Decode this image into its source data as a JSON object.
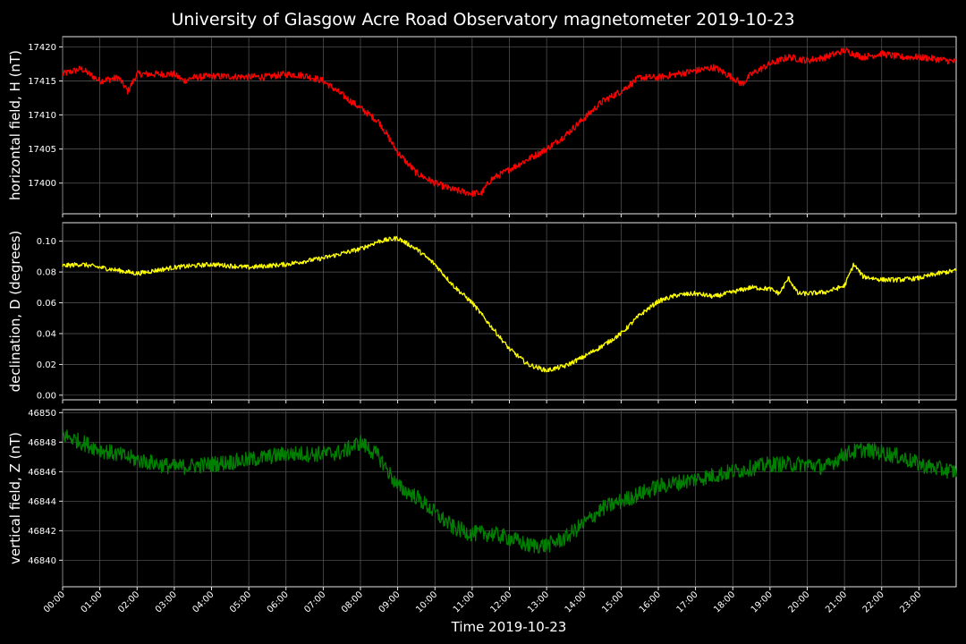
{
  "chart_data": {
    "type": "line",
    "title": "University of Glasgow Acre Road Observatory magnetometer 2019-10-23",
    "xlabel": "Time 2019-10-23",
    "x_ticks": [
      "00:00",
      "01:00",
      "02:00",
      "03:00",
      "04:00",
      "05:00",
      "06:00",
      "07:00",
      "08:00",
      "09:00",
      "10:00",
      "11:00",
      "12:00",
      "13:00",
      "14:00",
      "15:00",
      "16:00",
      "17:00",
      "18:00",
      "19:00",
      "20:00",
      "21:00",
      "22:00",
      "23:00"
    ],
    "xlim": [
      "00:00",
      "24:00"
    ],
    "grid": true,
    "panels": [
      {
        "ylabel": "horizontal field, H (nT)",
        "color": "#ff0000",
        "ylim": [
          17395.5,
          17421.5
        ],
        "yticks": [
          17400,
          17405,
          17410,
          17415,
          17420
        ],
        "noise": 0.5,
        "series": {
          "name": "H",
          "x": [
            "00:00",
            "00:30",
            "01:00",
            "01:30",
            "01:45",
            "02:00",
            "02:30",
            "03:00",
            "03:15",
            "03:30",
            "04:00",
            "05:00",
            "05:30",
            "06:00",
            "06:30",
            "07:00",
            "07:30",
            "08:00",
            "08:30",
            "09:00",
            "09:30",
            "10:00",
            "10:30",
            "11:00",
            "11:15",
            "11:30",
            "12:00",
            "12:30",
            "13:00",
            "13:30",
            "14:00",
            "14:30",
            "15:00",
            "15:30",
            "16:00",
            "16:30",
            "17:00",
            "17:30",
            "18:00",
            "18:15",
            "18:30",
            "19:00",
            "19:30",
            "20:00",
            "20:30",
            "21:00",
            "21:30",
            "22:00",
            "22:30",
            "23:00",
            "23:30",
            "24:00"
          ],
          "y": [
            17416,
            17416.8,
            17415,
            17415.5,
            17413.5,
            17416,
            17416,
            17416,
            17415,
            17415.5,
            17415.7,
            17415.6,
            17415.6,
            17416,
            17415.8,
            17415,
            17413,
            17411,
            17409,
            17404.5,
            17401.5,
            17400,
            17399,
            17398.5,
            17398.5,
            17400.5,
            17402,
            17403.5,
            17405,
            17407,
            17409.5,
            17412,
            17413.5,
            17415.5,
            17415.5,
            17416,
            17416.5,
            17417,
            17415.5,
            17414.5,
            17416,
            17417.5,
            17418.5,
            17418,
            17418.5,
            17419.5,
            17418.5,
            17419,
            17418.5,
            17418.5,
            17418.2,
            17417.8
          ]
        }
      },
      {
        "ylabel": "declination, D (degrees)",
        "color": "#ffff00",
        "ylim": [
          -0.003,
          0.112
        ],
        "yticks": [
          0.0,
          0.02,
          0.04,
          0.06,
          0.08,
          0.1
        ],
        "noise": 0.0015,
        "series": {
          "name": "D",
          "x": [
            "00:00",
            "00:30",
            "01:00",
            "02:00",
            "03:00",
            "04:00",
            "05:00",
            "06:00",
            "07:00",
            "08:00",
            "08:30",
            "09:00",
            "09:30",
            "10:00",
            "10:30",
            "11:00",
            "11:30",
            "12:00",
            "12:30",
            "13:00",
            "13:30",
            "14:00",
            "14:30",
            "15:00",
            "15:30",
            "16:00",
            "16:30",
            "17:00",
            "17:30",
            "18:00",
            "18:30",
            "19:00",
            "19:15",
            "19:30",
            "19:45",
            "20:00",
            "20:30",
            "21:00",
            "21:15",
            "21:30",
            "22:00",
            "22:30",
            "23:00",
            "23:30",
            "24:00"
          ],
          "y": [
            0.084,
            0.085,
            0.083,
            0.079,
            0.083,
            0.085,
            0.083,
            0.085,
            0.089,
            0.095,
            0.1,
            0.102,
            0.095,
            0.085,
            0.071,
            0.06,
            0.045,
            0.03,
            0.02,
            0.016,
            0.019,
            0.025,
            0.032,
            0.04,
            0.052,
            0.061,
            0.065,
            0.066,
            0.064,
            0.067,
            0.07,
            0.069,
            0.066,
            0.076,
            0.066,
            0.066,
            0.067,
            0.071,
            0.085,
            0.077,
            0.075,
            0.075,
            0.076,
            0.079,
            0.081
          ]
        }
      },
      {
        "ylabel": "vertical field, Z (nT)",
        "color": "#008000",
        "ylim": [
          46838.2,
          46850.2
        ],
        "yticks": [
          46840,
          46842,
          46844,
          46846,
          46848,
          46850
        ],
        "noise": 0.55,
        "series": {
          "name": "Z",
          "x": [
            "00:00",
            "00:30",
            "01:00",
            "02:00",
            "03:00",
            "04:00",
            "05:00",
            "06:00",
            "07:00",
            "07:30",
            "08:00",
            "08:30",
            "09:00",
            "09:30",
            "10:00",
            "10:30",
            "11:00",
            "11:30",
            "12:00",
            "12:30",
            "13:00",
            "13:30",
            "14:00",
            "14:30",
            "15:00",
            "16:00",
            "17:00",
            "18:00",
            "19:00",
            "20:00",
            "20:30",
            "21:00",
            "21:30",
            "22:00",
            "22:30",
            "23:00",
            "23:30",
            "24:00"
          ],
          "y": [
            46848.5,
            46848,
            46847.5,
            46846.8,
            46846.3,
            46846.5,
            46846.8,
            46847.2,
            46847.2,
            46847.3,
            46848,
            46847,
            46845,
            46844.3,
            46843.2,
            46842.2,
            46841.8,
            46841.8,
            46841.5,
            46841,
            46841,
            46841.5,
            46842.5,
            46843.5,
            46844,
            46845,
            46845.5,
            46846,
            46846.5,
            46846.5,
            46846.3,
            46847.2,
            46847.5,
            46847.3,
            46847,
            46846.5,
            46846.2,
            46846
          ]
        }
      }
    ]
  }
}
